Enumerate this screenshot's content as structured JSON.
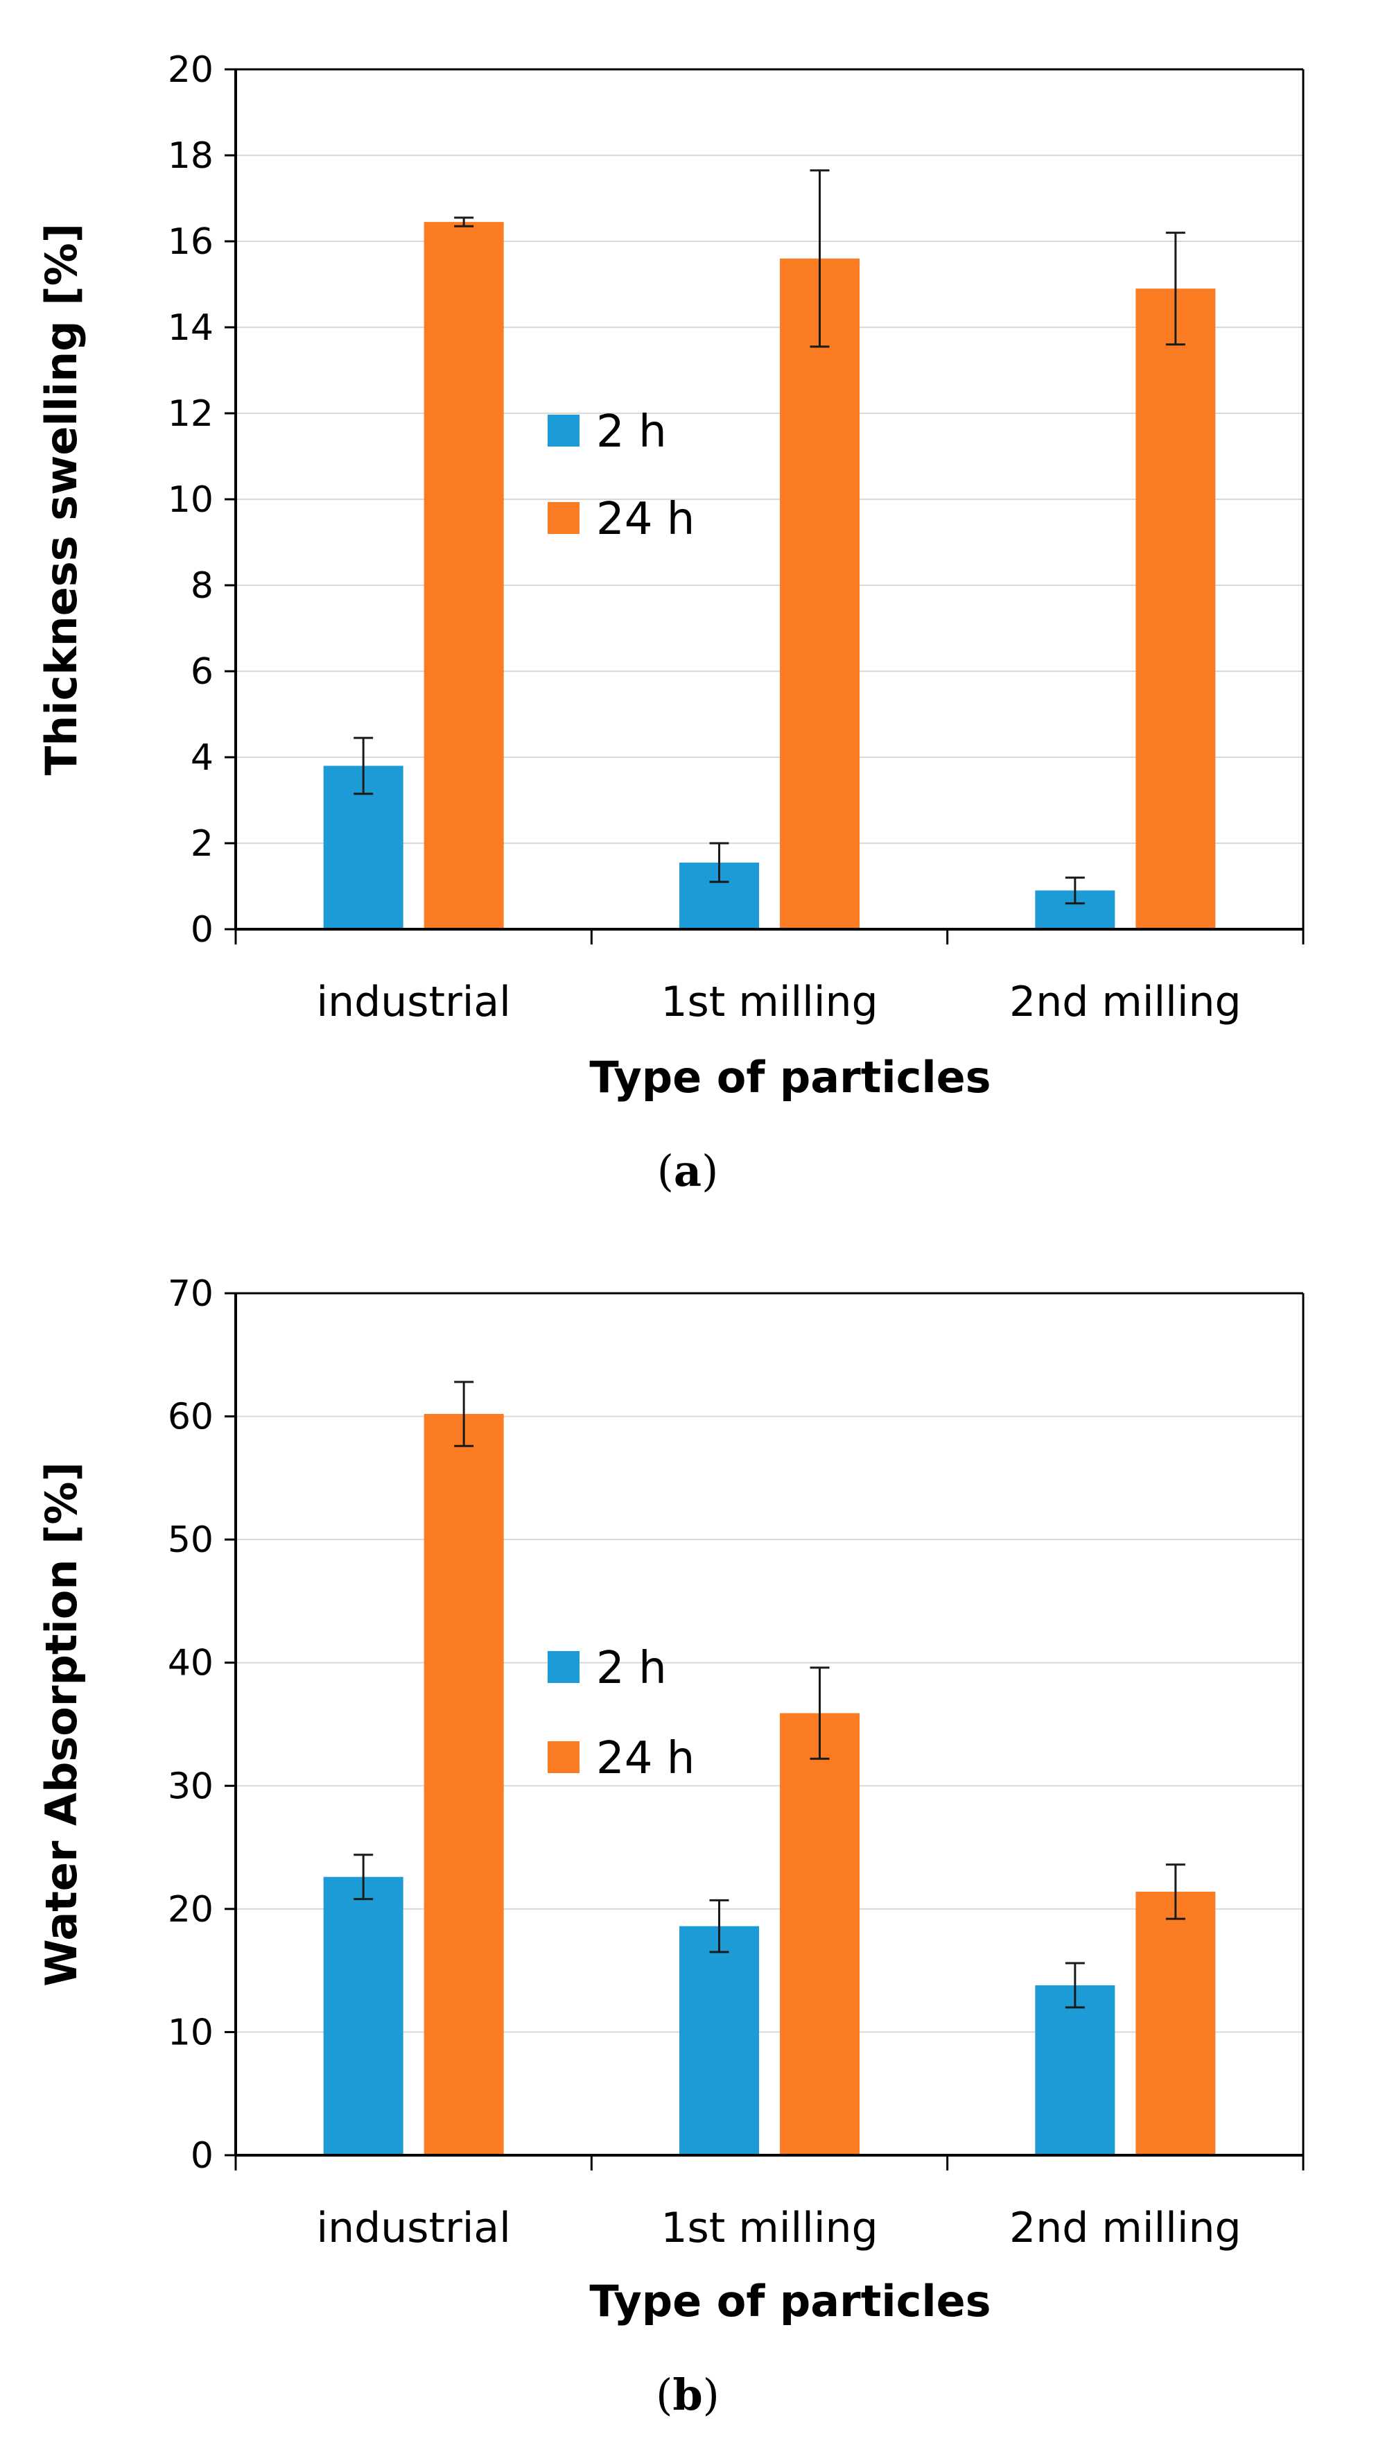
{
  "colors": {
    "series_2h": "#1c9bd7",
    "series_24h": "#fb7c22",
    "axis": "#000000",
    "grid": "#d9d9d9",
    "error_bar": "#1a1a1a"
  },
  "chart_data": [
    {
      "type": "bar",
      "panel_label": "a",
      "title": "",
      "xlabel": "Type of particles",
      "ylabel": "Thickness swelling [%]",
      "ylim": [
        0,
        20
      ],
      "yticks": [
        0,
        2,
        4,
        6,
        8,
        10,
        12,
        14,
        16,
        18,
        20
      ],
      "grid": true,
      "legend_position": "center",
      "categories": [
        "industrial",
        "1st milling",
        "2nd milling"
      ],
      "series": [
        {
          "name": "2 h",
          "values": [
            3.8,
            1.55,
            0.9
          ],
          "errors": [
            0.65,
            0.45,
            0.3
          ]
        },
        {
          "name": "24 h",
          "values": [
            16.45,
            15.6,
            14.9
          ],
          "errors": [
            0.1,
            2.05,
            1.3
          ]
        }
      ]
    },
    {
      "type": "bar",
      "panel_label": "b",
      "title": "",
      "xlabel": "Type of particles",
      "ylabel": "Water Absorption [%]",
      "ylim": [
        0,
        70
      ],
      "yticks": [
        0,
        10,
        20,
        30,
        40,
        50,
        60,
        70
      ],
      "grid": true,
      "legend_position": "center",
      "categories": [
        "industrial",
        "1st milling",
        "2nd milling"
      ],
      "series": [
        {
          "name": "2 h",
          "values": [
            22.6,
            18.6,
            13.8
          ],
          "errors": [
            1.8,
            2.1,
            1.8
          ]
        },
        {
          "name": "24 h",
          "values": [
            60.2,
            35.9,
            21.4
          ],
          "errors": [
            2.6,
            3.7,
            2.2
          ]
        }
      ]
    }
  ]
}
